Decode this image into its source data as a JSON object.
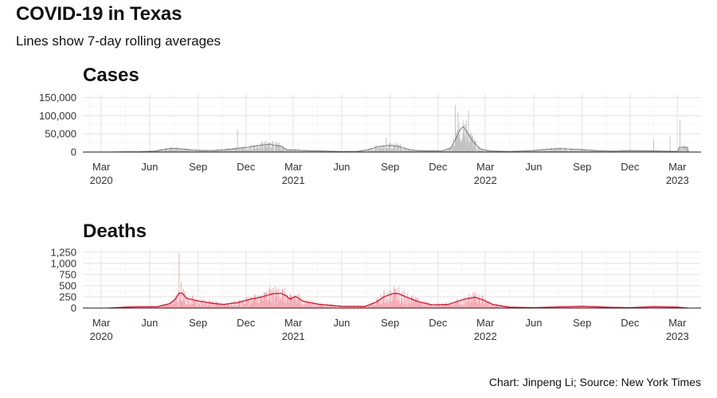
{
  "header": {
    "title": "COVID-19 in Texas",
    "subtitle": "Lines show 7-day rolling averages"
  },
  "caption": "Chart: Jinpeng Li; Source: New York Times",
  "colors": {
    "cases": "#7a7a7a",
    "cases_bar": "#bdbdbd",
    "deaths": "#e3001b",
    "deaths_bar": "#f4a3ac"
  },
  "chart_data": [
    {
      "type": "line",
      "title": "Cases",
      "xlabel": "",
      "ylabel": "",
      "ylim": [
        0,
        160000
      ],
      "yticks": [
        0,
        50000,
        100000,
        150000
      ],
      "ytick_labels": [
        "0",
        "50,000",
        "100,000",
        "150,000"
      ],
      "xlim": [
        "2020-01-26",
        "2023-04-15"
      ],
      "xticks": [
        {
          "date": "2020-03-01",
          "label": "Mar",
          "year": "2020"
        },
        {
          "date": "2020-06-01",
          "label": "Jun",
          "year": ""
        },
        {
          "date": "2020-09-01",
          "label": "Sep",
          "year": ""
        },
        {
          "date": "2020-12-01",
          "label": "Dec",
          "year": ""
        },
        {
          "date": "2021-03-01",
          "label": "Mar",
          "year": "2021"
        },
        {
          "date": "2021-06-01",
          "label": "Jun",
          "year": ""
        },
        {
          "date": "2021-09-01",
          "label": "Sep",
          "year": ""
        },
        {
          "date": "2021-12-01",
          "label": "Dec",
          "year": ""
        },
        {
          "date": "2022-03-01",
          "label": "Mar",
          "year": "2022"
        },
        {
          "date": "2022-06-01",
          "label": "Jun",
          "year": ""
        },
        {
          "date": "2022-09-01",
          "label": "Sep",
          "year": ""
        },
        {
          "date": "2022-12-01",
          "label": "Dec",
          "year": ""
        },
        {
          "date": "2023-03-01",
          "label": "Mar",
          "year": "2023"
        }
      ],
      "series": [
        {
          "style": "rolling-average-line",
          "points": [
            [
              "2020-03-15",
              0
            ],
            [
              "2020-04-15",
              900
            ],
            [
              "2020-05-15",
              1100
            ],
            [
              "2020-06-10",
              2500
            ],
            [
              "2020-06-25",
              6000
            ],
            [
              "2020-07-10",
              9500
            ],
            [
              "2020-07-20",
              10000
            ],
            [
              "2020-08-05",
              8000
            ],
            [
              "2020-08-20",
              5500
            ],
            [
              "2020-09-10",
              4200
            ],
            [
              "2020-10-01",
              4500
            ],
            [
              "2020-10-20",
              6000
            ],
            [
              "2020-11-10",
              9000
            ],
            [
              "2020-12-01",
              12000
            ],
            [
              "2020-12-20",
              17000
            ],
            [
              "2021-01-05",
              20000
            ],
            [
              "2021-01-15",
              22000
            ],
            [
              "2021-01-25",
              18000
            ],
            [
              "2021-02-05",
              16000
            ],
            [
              "2021-02-18",
              5000
            ],
            [
              "2021-03-01",
              6000
            ],
            [
              "2021-03-20",
              4000
            ],
            [
              "2021-04-20",
              3000
            ],
            [
              "2021-06-01",
              1500
            ],
            [
              "2021-07-01",
              2000
            ],
            [
              "2021-07-20",
              6000
            ],
            [
              "2021-08-05",
              13000
            ],
            [
              "2021-08-20",
              17000
            ],
            [
              "2021-09-01",
              18000
            ],
            [
              "2021-09-15",
              16000
            ],
            [
              "2021-10-01",
              9000
            ],
            [
              "2021-10-20",
              4000
            ],
            [
              "2021-11-15",
              3000
            ],
            [
              "2021-12-10",
              3500
            ],
            [
              "2021-12-25",
              10000
            ],
            [
              "2022-01-05",
              40000
            ],
            [
              "2022-01-12",
              62000
            ],
            [
              "2022-01-18",
              70000
            ],
            [
              "2022-01-25",
              55000
            ],
            [
              "2022-02-05",
              30000
            ],
            [
              "2022-02-20",
              8000
            ],
            [
              "2022-03-10",
              3000
            ],
            [
              "2022-04-15",
              1500
            ],
            [
              "2022-06-01",
              4000
            ],
            [
              "2022-07-01",
              8000
            ],
            [
              "2022-07-20",
              9500
            ],
            [
              "2022-08-10",
              8000
            ],
            [
              "2022-09-05",
              6000
            ],
            [
              "2022-10-01",
              3500
            ],
            [
              "2022-11-01",
              2500
            ],
            [
              "2022-12-01",
              4000
            ],
            [
              "2022-12-20",
              3500
            ],
            [
              "2023-01-20",
              3000
            ],
            [
              "2023-02-20",
              2000
            ],
            [
              "2023-03-01",
              1500
            ],
            [
              "2023-03-05",
              13000
            ],
            [
              "2023-03-20",
              13000
            ],
            [
              "2023-03-22",
              0
            ]
          ]
        },
        {
          "style": "daily-bars",
          "spikes": [
            [
              "2020-11-15",
              62000
            ],
            [
              "2021-01-20",
              30000
            ],
            [
              "2021-08-25",
              40000
            ],
            [
              "2022-01-03",
              130000
            ],
            [
              "2022-01-08",
              110000
            ],
            [
              "2022-01-28",
              115000
            ],
            [
              "2023-01-15",
              35000
            ],
            [
              "2023-02-15",
              45000
            ],
            [
              "2023-03-06",
              88000
            ]
          ]
        }
      ]
    },
    {
      "type": "line",
      "title": "Deaths",
      "xlabel": "",
      "ylabel": "",
      "ylim": [
        0,
        1300
      ],
      "yticks": [
        0,
        250,
        500,
        750,
        1000,
        1250
      ],
      "ytick_labels": [
        "0",
        "250",
        "500",
        "750",
        "1,000",
        "1,250"
      ],
      "xlim": [
        "2020-01-26",
        "2023-04-15"
      ],
      "xticks": [
        {
          "date": "2020-03-01",
          "label": "Mar",
          "year": "2020"
        },
        {
          "date": "2020-06-01",
          "label": "Jun",
          "year": ""
        },
        {
          "date": "2020-09-01",
          "label": "Sep",
          "year": ""
        },
        {
          "date": "2020-12-01",
          "label": "Dec",
          "year": ""
        },
        {
          "date": "2021-03-01",
          "label": "Mar",
          "year": "2021"
        },
        {
          "date": "2021-06-01",
          "label": "Jun",
          "year": ""
        },
        {
          "date": "2021-09-01",
          "label": "Sep",
          "year": ""
        },
        {
          "date": "2021-12-01",
          "label": "Dec",
          "year": ""
        },
        {
          "date": "2022-03-01",
          "label": "Mar",
          "year": "2022"
        },
        {
          "date": "2022-06-01",
          "label": "Jun",
          "year": ""
        },
        {
          "date": "2022-09-01",
          "label": "Sep",
          "year": ""
        },
        {
          "date": "2022-12-01",
          "label": "Dec",
          "year": ""
        },
        {
          "date": "2023-03-01",
          "label": "Mar",
          "year": "2023"
        }
      ],
      "series": [
        {
          "style": "rolling-average-line",
          "points": [
            [
              "2020-03-15",
              0
            ],
            [
              "2020-04-15",
              20
            ],
            [
              "2020-05-15",
              30
            ],
            [
              "2020-06-15",
              30
            ],
            [
              "2020-07-10",
              100
            ],
            [
              "2020-07-20",
              200
            ],
            [
              "2020-07-27",
              340
            ],
            [
              "2020-08-02",
              330
            ],
            [
              "2020-08-10",
              220
            ],
            [
              "2020-09-01",
              160
            ],
            [
              "2020-10-01",
              100
            ],
            [
              "2020-10-20",
              80
            ],
            [
              "2020-11-15",
              120
            ],
            [
              "2020-12-10",
              200
            ],
            [
              "2021-01-01",
              250
            ],
            [
              "2021-01-20",
              320
            ],
            [
              "2021-02-05",
              330
            ],
            [
              "2021-02-15",
              280
            ],
            [
              "2021-02-22",
              200
            ],
            [
              "2021-03-05",
              260
            ],
            [
              "2021-03-20",
              150
            ],
            [
              "2021-04-20",
              80
            ],
            [
              "2021-06-01",
              40
            ],
            [
              "2021-07-15",
              35
            ],
            [
              "2021-08-05",
              130
            ],
            [
              "2021-08-20",
              250
            ],
            [
              "2021-09-05",
              320
            ],
            [
              "2021-09-15",
              330
            ],
            [
              "2021-10-01",
              250
            ],
            [
              "2021-10-25",
              140
            ],
            [
              "2021-11-20",
              70
            ],
            [
              "2021-12-20",
              80
            ],
            [
              "2022-01-20",
              200
            ],
            [
              "2022-02-10",
              240
            ],
            [
              "2022-02-25",
              180
            ],
            [
              "2022-03-15",
              80
            ],
            [
              "2022-04-15",
              20
            ],
            [
              "2022-06-01",
              10
            ],
            [
              "2022-08-01",
              30
            ],
            [
              "2022-09-01",
              40
            ],
            [
              "2022-10-15",
              20
            ],
            [
              "2022-12-01",
              10
            ],
            [
              "2023-01-15",
              30
            ],
            [
              "2023-03-01",
              20
            ],
            [
              "2023-03-21",
              0
            ]
          ]
        },
        {
          "style": "daily-bars",
          "spikes": [
            [
              "2020-07-27",
              1220
            ],
            [
              "2020-07-31",
              580
            ],
            [
              "2021-01-15",
              420
            ],
            [
              "2021-02-01",
              450
            ],
            [
              "2021-09-10",
              420
            ],
            [
              "2022-02-08",
              330
            ]
          ]
        }
      ]
    }
  ]
}
